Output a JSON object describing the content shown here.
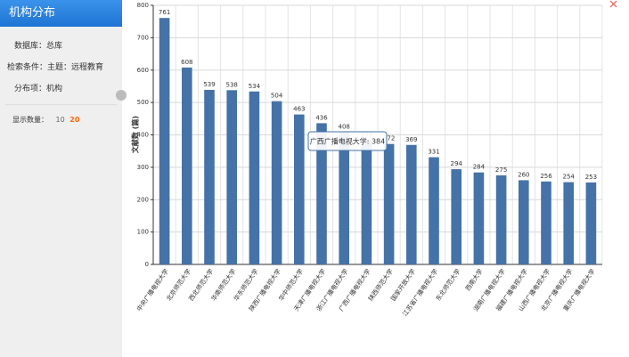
{
  "sidebar": {
    "title": "机构分布",
    "database": "数据库：总库",
    "condition": "检索条件：主题：远程教育",
    "item": "分布项：机构",
    "count_label": "显示数量：",
    "count_options": [
      "10",
      "20"
    ]
  },
  "chart_data": {
    "type": "bar",
    "y_label": "文献数 (篇)",
    "categories": [
      "中央广播电视大学",
      "北京师范大学",
      "西北师范大学",
      "华南师范大学",
      "华东师范大学",
      "陕西广播电视大学",
      "华中师范大学",
      "天津广播电视大学",
      "浙江广播电视大学",
      "广西广播电视大学",
      "陕西师范大学",
      "国家开放大学",
      "江苏省广播电视大学",
      "东北师范大学",
      "西南大学",
      "湖南广播电视大学",
      "福建广播电视大学",
      "山西广播电视大学",
      "北京广播电视大学",
      "重庆广播电视大学"
    ],
    "values": [
      761,
      608,
      539,
      538,
      534,
      504,
      463,
      436,
      408,
      384,
      372,
      369,
      331,
      294,
      284,
      275,
      260,
      256,
      254,
      253
    ],
    "color": "#4572a7",
    "ylim": [
      0,
      800
    ],
    "yticks": [
      0,
      100,
      200,
      300,
      400,
      500,
      600,
      700,
      800
    ],
    "grid": true,
    "tooltip": "广西广播电视大学: 384"
  }
}
